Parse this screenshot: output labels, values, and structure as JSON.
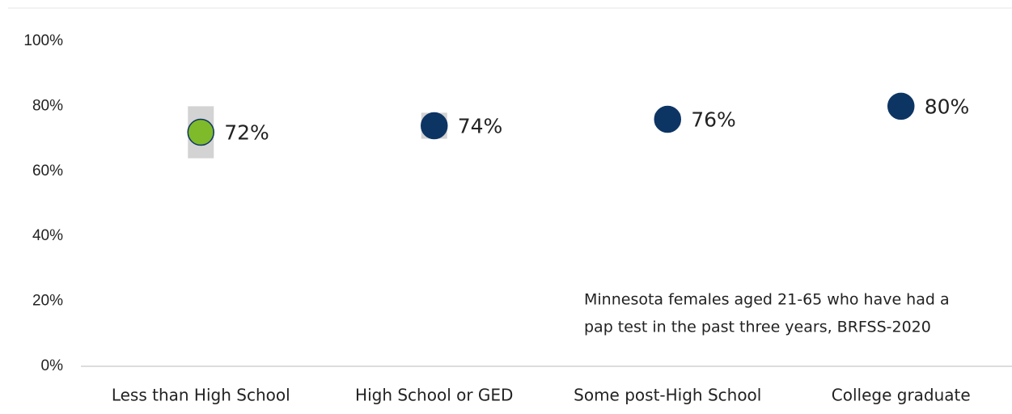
{
  "chart_data": {
    "type": "dot",
    "categories": [
      "Less than High School",
      "High School or GED",
      "Some post-High School",
      "College graduate"
    ],
    "values": [
      72,
      74,
      76,
      80
    ],
    "value_labels": [
      "72%",
      "74%",
      "76%",
      "80%"
    ],
    "errors": [
      8,
      4,
      2,
      1
    ],
    "colors": [
      "#7fba2a",
      "#0d3564",
      "#0d3564",
      "#0d3564"
    ],
    "ylim": [
      0,
      100
    ],
    "yticks": [
      {
        "value": 0,
        "label": "0%"
      },
      {
        "value": 20,
        "label": "20%"
      },
      {
        "value": 40,
        "label": "40%"
      },
      {
        "value": 60,
        "label": "60%"
      },
      {
        "value": 80,
        "label": "80%"
      },
      {
        "value": 100,
        "label": "100%"
      }
    ],
    "annotation": [
      "Minnesota females aged 21-65 who have had a",
      "pap test in the past three years, BRFSS-2020"
    ]
  }
}
